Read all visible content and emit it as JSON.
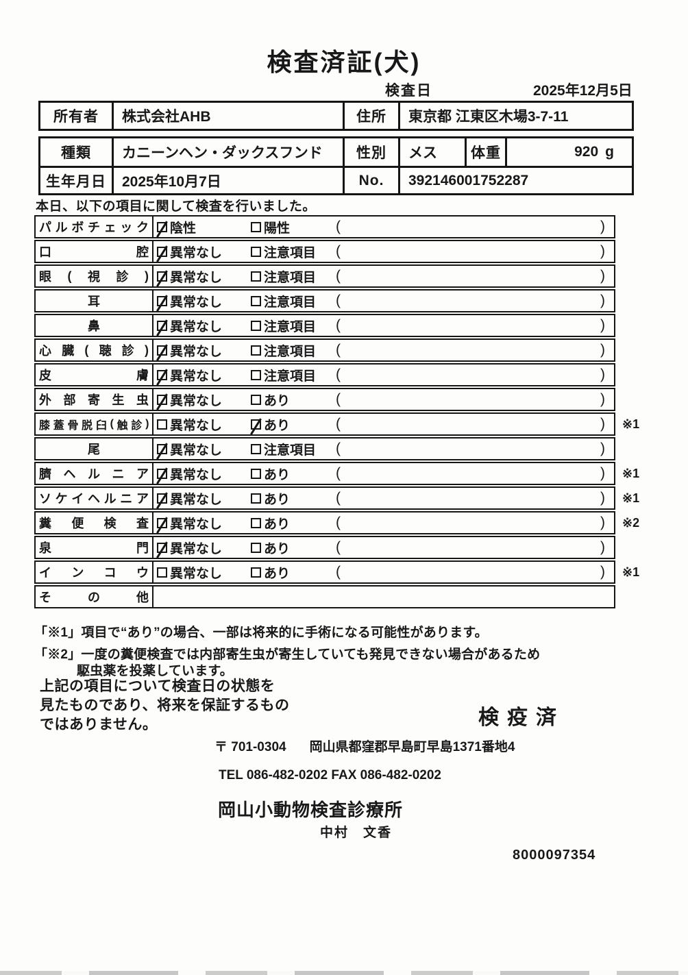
{
  "title": "検査済証(犬)",
  "inspection_date": {
    "label": "検査日",
    "value": "2025年12月5日"
  },
  "owner_table": {
    "owner_label": "所有者",
    "owner_value": "株式会社AHB",
    "address_label": "住所",
    "address_value": "東京都 江東区木場3-7-11"
  },
  "info_table": {
    "breed_label": "種類",
    "breed_value": "カニーンヘン・ダックスフンド",
    "sex_label": "性別",
    "sex_value": "メス",
    "weight_label": "体重",
    "weight_value": "920",
    "weight_unit": "g",
    "birth_label": "生年月日",
    "birth_value": "2025年10月7日",
    "no_label": "No.",
    "no_value": "392146001752287"
  },
  "intro_note": "本日、以下の項目に関して検査を行いました。",
  "inspection": {
    "paren_open": "(",
    "paren_close": ")",
    "rows": [
      {
        "label": "パルボチェック",
        "align": "justify",
        "options": [
          {
            "label": "陰性",
            "checked": true
          },
          {
            "label": "陽性",
            "checked": false
          }
        ],
        "mark": ""
      },
      {
        "label": "口腔",
        "align": "justify",
        "options": [
          {
            "label": "異常なし",
            "checked": true
          },
          {
            "label": "注意項目",
            "checked": false
          }
        ],
        "mark": ""
      },
      {
        "label": "眼(視診)",
        "align": "justify",
        "options": [
          {
            "label": "異常なし",
            "checked": true
          },
          {
            "label": "注意項目",
            "checked": false
          }
        ],
        "mark": ""
      },
      {
        "label": "耳",
        "align": "center",
        "options": [
          {
            "label": "異常なし",
            "checked": true
          },
          {
            "label": "注意項目",
            "checked": false
          }
        ],
        "mark": ""
      },
      {
        "label": "鼻",
        "align": "center",
        "options": [
          {
            "label": "異常なし",
            "checked": true
          },
          {
            "label": "注意項目",
            "checked": false
          }
        ],
        "mark": ""
      },
      {
        "label": "心臓(聴診)",
        "align": "justify",
        "options": [
          {
            "label": "異常なし",
            "checked": true
          },
          {
            "label": "注意項目",
            "checked": false
          }
        ],
        "mark": ""
      },
      {
        "label": "皮膚",
        "align": "justify",
        "options": [
          {
            "label": "異常なし",
            "checked": true
          },
          {
            "label": "注意項目",
            "checked": false
          }
        ],
        "mark": ""
      },
      {
        "label": "外部寄生虫",
        "align": "justify",
        "options": [
          {
            "label": "異常なし",
            "checked": true
          },
          {
            "label": "あり",
            "checked": false
          }
        ],
        "mark": ""
      },
      {
        "label": "膝蓋骨脱臼(触診)",
        "align": "justify",
        "options": [
          {
            "label": "異常なし",
            "checked": false
          },
          {
            "label": "あり",
            "checked": true
          }
        ],
        "mark": "※1"
      },
      {
        "label": "尾",
        "align": "center",
        "options": [
          {
            "label": "異常なし",
            "checked": true
          },
          {
            "label": "注意項目",
            "checked": false
          }
        ],
        "mark": ""
      },
      {
        "label": "臍ヘルニア",
        "align": "justify",
        "options": [
          {
            "label": "異常なし",
            "checked": true
          },
          {
            "label": "あり",
            "checked": false
          }
        ],
        "mark": "※1"
      },
      {
        "label": "ソケイヘルニア",
        "align": "justify",
        "options": [
          {
            "label": "異常なし",
            "checked": true
          },
          {
            "label": "あり",
            "checked": false
          }
        ],
        "mark": "※1"
      },
      {
        "label": "糞便検査",
        "align": "justify",
        "options": [
          {
            "label": "異常なし",
            "checked": true
          },
          {
            "label": "あり",
            "checked": false
          }
        ],
        "mark": "※2"
      },
      {
        "label": "泉門",
        "align": "justify",
        "options": [
          {
            "label": "異常なし",
            "checked": true
          },
          {
            "label": "あり",
            "checked": false
          }
        ],
        "mark": ""
      },
      {
        "label": "インコウ",
        "align": "justify",
        "options": [
          {
            "label": "異常なし",
            "checked": false
          },
          {
            "label": "あり",
            "checked": false
          }
        ],
        "mark": "※1"
      },
      {
        "label": "その他",
        "align": "justify",
        "options": [],
        "mark": ""
      }
    ]
  },
  "footnotes": [
    "「※1」項目で“あり”の場合、一部は将来的に手術になる可能性があります。",
    "「※2」一度の糞便検査では内部寄生虫が寄生していても発見できない場合があるため",
    "駆虫薬を投薬しています。"
  ],
  "disclaimer": [
    "上記の項目について検査日の状態を",
    "見たものであり、将来を保証するもの",
    "ではありません。"
  ],
  "quarantine_stamp": "検疫済",
  "clinic": {
    "postal": "〒 701-0304",
    "address": "岡山県都窪郡早島町早島1371番地4",
    "tel_fax": "TEL 086-482-0202   FAX 086-482-0202",
    "name": "岡山小動物検査診療所",
    "vet_name": "中村　文香",
    "serial": "8000097354"
  }
}
